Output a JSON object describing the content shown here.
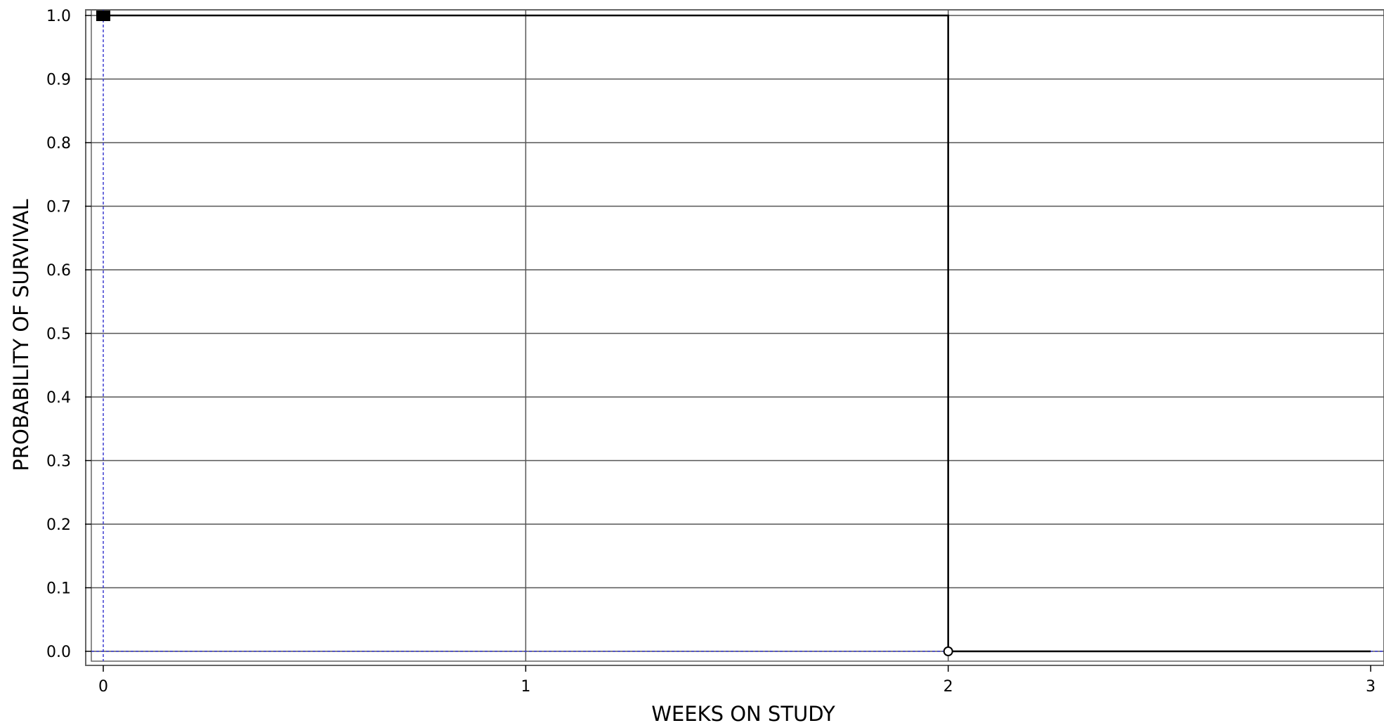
{
  "chart_data": {
    "type": "line",
    "step": true,
    "xlabel": "WEEKS ON STUDY",
    "ylabel": "PROBABILITY OF SURVIVAL",
    "xlim": [
      0,
      3
    ],
    "ylim": [
      0,
      1
    ],
    "x_ticks": [
      "0",
      "1",
      "2",
      "3"
    ],
    "y_ticks": [
      "0.0",
      "0.1",
      "0.2",
      "0.3",
      "0.4",
      "0.5",
      "0.6",
      "0.7",
      "0.8",
      "0.9",
      "1.0"
    ],
    "grid": true,
    "series": [
      {
        "color": "#000000",
        "points": [
          {
            "x": 0,
            "y": 1.0
          },
          {
            "x": 2,
            "y": 1.0
          },
          {
            "x": 2,
            "y": 0.0
          },
          {
            "x": 3,
            "y": 0.0
          }
        ],
        "markers": [
          {
            "x": 0,
            "y": 1.0,
            "shape": "square"
          },
          {
            "x": 2,
            "y": 0.0,
            "shape": "circle"
          }
        ]
      }
    ],
    "reference_lines": [
      {
        "axis": "x",
        "value": 0,
        "color": "#3b3bd0",
        "style": "dashed"
      },
      {
        "axis": "y",
        "value": 0,
        "color": "#3b3bd0",
        "style": "dashed"
      }
    ],
    "colors": {
      "grid": "#555555",
      "frame": "#666666",
      "reference": "#3b3bd0",
      "series": "#000000"
    }
  }
}
